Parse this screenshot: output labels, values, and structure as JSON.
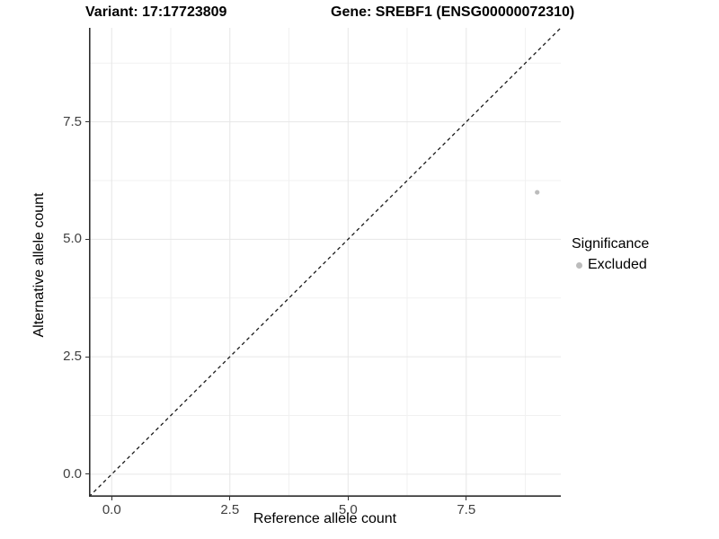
{
  "header": {
    "variant_title": "Variant: 17:17723809",
    "gene_title": "Gene: SREBF1 (ENSG00000072310)"
  },
  "legend": {
    "title": "Significance",
    "items": [
      {
        "label": "Excluded",
        "color": "#bcbcbc",
        "marker": "circle"
      }
    ]
  },
  "chart_data": {
    "type": "scatter",
    "xlabel": "Reference allele count",
    "ylabel": "Alternative allele count",
    "xlim": [
      -0.48,
      9.5
    ],
    "ylim": [
      -0.48,
      9.5
    ],
    "x_ticks": {
      "labels": [
        "0.0",
        "2.5",
        "5.0",
        "7.5"
      ],
      "values": [
        0,
        2.5,
        5.0,
        7.5
      ],
      "minor_values": [
        1.25,
        3.75,
        6.25,
        8.75
      ]
    },
    "y_ticks": {
      "labels": [
        "0.0",
        "2.5",
        "5.0",
        "7.5"
      ],
      "values": [
        0,
        2.5,
        5.0,
        7.5
      ],
      "minor_values": [
        1.25,
        3.75,
        6.25,
        8.75
      ]
    },
    "grid": {
      "major": true,
      "minor": true
    },
    "legend_position": "right",
    "series": [
      {
        "name": "Excluded",
        "color": "#bcbcbc",
        "points": [
          {
            "x": 9,
            "y": 6
          }
        ]
      }
    ],
    "reference_line": {
      "type": "identity",
      "slope": 1,
      "intercept": 0,
      "style": "dashed",
      "color": "#1a1a1a"
    }
  },
  "colors": {
    "panel_background": "#ffffff",
    "grid_major": "#e6e6e6",
    "grid_minor": "#f1f1f1",
    "axis_line": "#2e2e2e",
    "tick_label": "#404040",
    "point": "#bcbcbc"
  }
}
